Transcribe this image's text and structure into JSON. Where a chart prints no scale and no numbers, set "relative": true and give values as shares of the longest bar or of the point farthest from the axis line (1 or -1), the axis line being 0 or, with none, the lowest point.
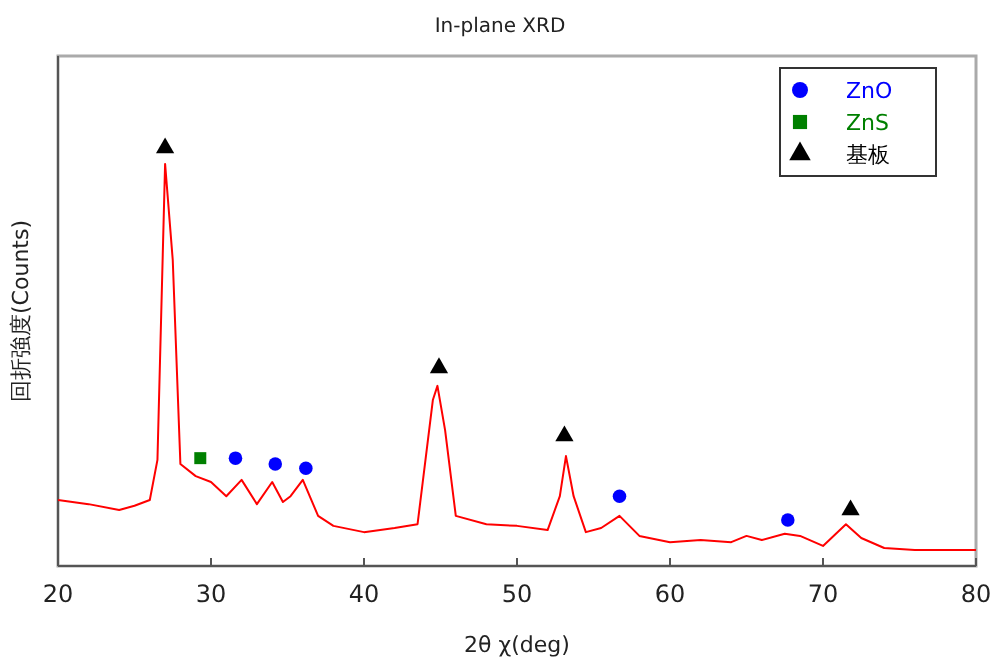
{
  "chart_data": {
    "type": "line",
    "title": "In-plane XRD",
    "xlabel": "2θ χ(deg)",
    "ylabel": "回折強度(Counts)",
    "relative": true,
    "xlim": [
      20,
      80
    ],
    "xticks": [
      20,
      30,
      40,
      50,
      60,
      70,
      80
    ],
    "grid": false,
    "legend": "top right",
    "series": [
      {
        "color": "#ff0000",
        "marker": "none",
        "x": [
          20,
          22,
          24,
          25,
          26,
          26.5,
          27,
          27.5,
          28,
          29,
          30,
          31,
          32,
          33,
          34,
          34.7,
          35.2,
          36,
          37,
          38,
          40,
          42,
          43.5,
          44.5,
          44.8,
          45.3,
          46,
          48,
          50,
          52,
          52.8,
          53.2,
          53.7,
          54.5,
          55.5,
          56.7,
          58,
          60,
          62,
          64,
          65,
          66,
          67.5,
          68.5,
          70,
          71.5,
          72.5,
          74,
          76,
          80
        ],
        "values": [
          0.158,
          0.148,
          0.134,
          0.144,
          0.158,
          0.254,
          0.962,
          0.732,
          0.244,
          0.215,
          0.201,
          0.167,
          0.206,
          0.148,
          0.201,
          0.153,
          0.167,
          0.206,
          0.12,
          0.096,
          0.081,
          0.091,
          0.1,
          0.397,
          0.431,
          0.325,
          0.12,
          0.1,
          0.096,
          0.086,
          0.167,
          0.263,
          0.167,
          0.081,
          0.091,
          0.12,
          0.072,
          0.057,
          0.062,
          0.057,
          0.072,
          0.062,
          0.077,
          0.072,
          0.048,
          0.1,
          0.067,
          0.043,
          0.038,
          0.038
        ]
      },
      {
        "type": "scatter",
        "name": "ZnO",
        "color": "#0000ff",
        "marker": "circle",
        "x": [
          31.6,
          34.2,
          36.2,
          56.7,
          67.7
        ],
        "values": [
          0.258,
          0.244,
          0.234,
          0.167,
          0.11
        ]
      },
      {
        "type": "scatter",
        "name": "ZnS",
        "color": "#008000",
        "marker": "square",
        "x": [
          29.3
        ],
        "values": [
          0.258
        ]
      },
      {
        "type": "scatter",
        "name": "基板",
        "color": "#000000",
        "marker": "triangle",
        "x": [
          27,
          44.9,
          53.1,
          71.8
        ],
        "values": [
          1,
          0.474,
          0.311,
          0.134
        ]
      }
    ]
  }
}
